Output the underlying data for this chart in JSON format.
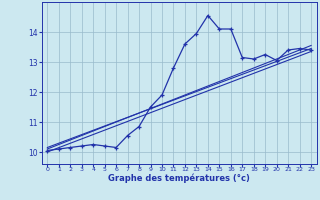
{
  "title": "",
  "xlabel": "Graphe des températures (°c)",
  "ylabel": "",
  "xlim": [
    -0.5,
    23.5
  ],
  "ylim": [
    9.6,
    15.0
  ],
  "xticks": [
    0,
    1,
    2,
    3,
    4,
    5,
    6,
    7,
    8,
    9,
    10,
    11,
    12,
    13,
    14,
    15,
    16,
    17,
    18,
    19,
    20,
    21,
    22,
    23
  ],
  "yticks": [
    10,
    11,
    12,
    13,
    14
  ],
  "background_color": "#cce8f0",
  "line_color": "#2233aa",
  "grid_color": "#99bbcc",
  "curve1_x": [
    0,
    1,
    2,
    3,
    4,
    5,
    6,
    7,
    8,
    9,
    10,
    11,
    12,
    13,
    14,
    15,
    16,
    17,
    18,
    19,
    20,
    21,
    22,
    23
  ],
  "curve1_y": [
    10.05,
    10.1,
    10.15,
    10.2,
    10.25,
    10.2,
    10.15,
    10.55,
    10.85,
    11.5,
    11.9,
    12.8,
    13.6,
    13.95,
    14.55,
    14.1,
    14.1,
    13.15,
    13.1,
    13.25,
    13.05,
    13.4,
    13.45,
    13.4
  ],
  "line1_x": [
    0,
    23
  ],
  "line1_y": [
    10.0,
    13.35
  ],
  "line2_x": [
    0,
    23
  ],
  "line2_y": [
    10.1,
    13.55
  ],
  "line3_x": [
    0,
    23
  ],
  "line3_y": [
    10.15,
    13.45
  ]
}
